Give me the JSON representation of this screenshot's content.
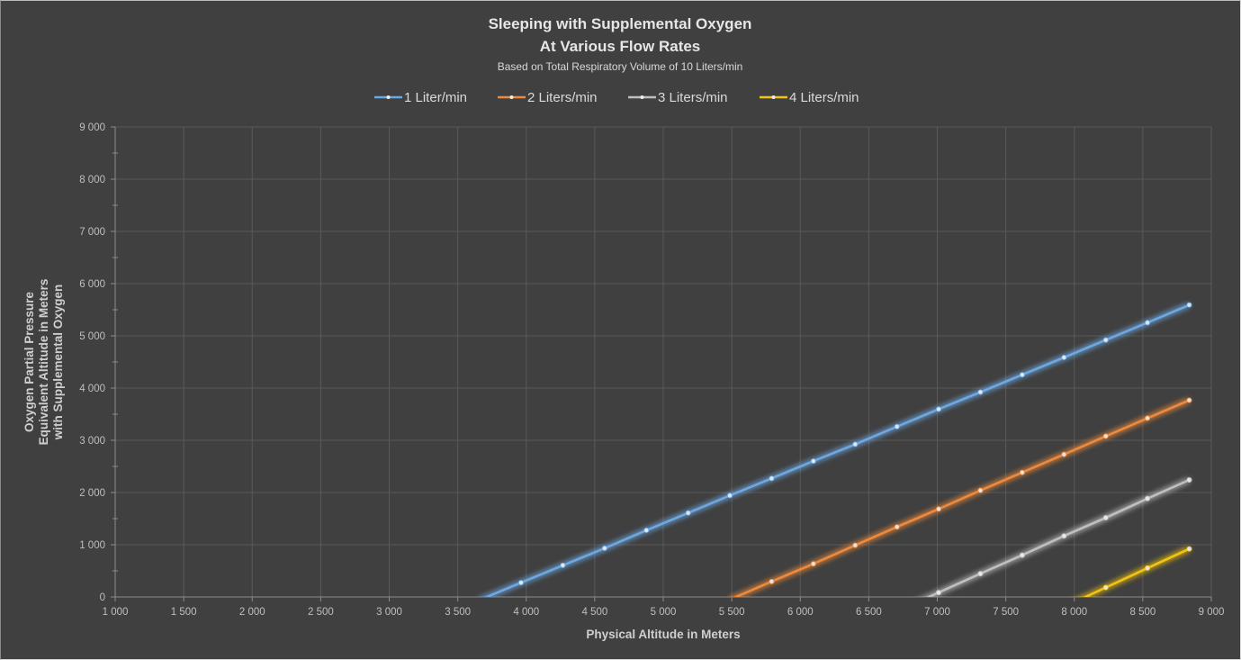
{
  "chart_data": {
    "type": "line",
    "title": "Sleeping with Supplemental Oxygen",
    "title_line2": "At Various Flow Rates",
    "subtitle": "Based on Total Respiratory Volume of 10 Liters/min",
    "xlabel": "Physical Altitude in Meters",
    "ylabel_lines": [
      "Oxygen Partial Pressure",
      "Equivalent Altitude  in Meters",
      "with Supplemental Oxygen"
    ],
    "xlim": [
      1000,
      9000
    ],
    "ylim": [
      0,
      9000
    ],
    "x_ticks": [
      1000,
      1500,
      2000,
      2500,
      3000,
      3500,
      4000,
      4500,
      5000,
      5500,
      6000,
      6500,
      7000,
      7500,
      8000,
      8500,
      9000
    ],
    "x_tick_labels": [
      "1 000",
      "1 500",
      "2 000",
      "2 500",
      "3 000",
      "3 500",
      "4 000",
      "4 500",
      "5 000",
      "5 500",
      "6 000",
      "6 500",
      "7 000",
      "7 500",
      "8 000",
      "8 500",
      "9 000"
    ],
    "y_ticks": [
      0,
      1000,
      2000,
      3000,
      4000,
      5000,
      6000,
      7000,
      8000,
      9000
    ],
    "y_tick_labels": [
      "0",
      "1 000",
      "2 000",
      "3 000",
      "4 000",
      "5 000",
      "6 000",
      "7 000",
      "8 000",
      "9 000"
    ],
    "grid": true,
    "legend_position": "top",
    "series": [
      {
        "name": "1 Liter/min",
        "color": "#6ea8e2",
        "x": [
          3658,
          3962,
          4267,
          4572,
          4877,
          5182,
          5486,
          5791,
          6096,
          6401,
          6706,
          7010,
          7315,
          7620,
          7925,
          8230,
          8534,
          8839
        ],
        "y": [
          -58,
          274,
          606,
          933,
          1277,
          1609,
          1943,
          2270,
          2602,
          2924,
          3262,
          3596,
          3923,
          4255,
          4587,
          4921,
          5253,
          5592
        ]
      },
      {
        "name": "2 Liters/min",
        "color": "#ee8a3d",
        "x": [
          5486,
          5791,
          6096,
          6401,
          6706,
          7010,
          7315,
          7620,
          7925,
          8230,
          8534,
          8839
        ],
        "y": [
          -50,
          296,
          635,
          990,
          1341,
          1685,
          2040,
          2384,
          2730,
          3079,
          3424,
          3768
        ]
      },
      {
        "name": "3 Liters/min",
        "color": "#bfbfbf",
        "x": [
          6706,
          7010,
          7315,
          7620,
          7925,
          8230,
          8534,
          8839
        ],
        "y": [
          -280,
          84,
          446,
          800,
          1169,
          1518,
          1885,
          2241
        ]
      },
      {
        "name": "4 Liters/min",
        "color": "#f2c414",
        "x": [
          7925,
          8230,
          8534,
          8839
        ],
        "y": [
          -190,
          181,
          554,
          921
        ]
      }
    ]
  }
}
